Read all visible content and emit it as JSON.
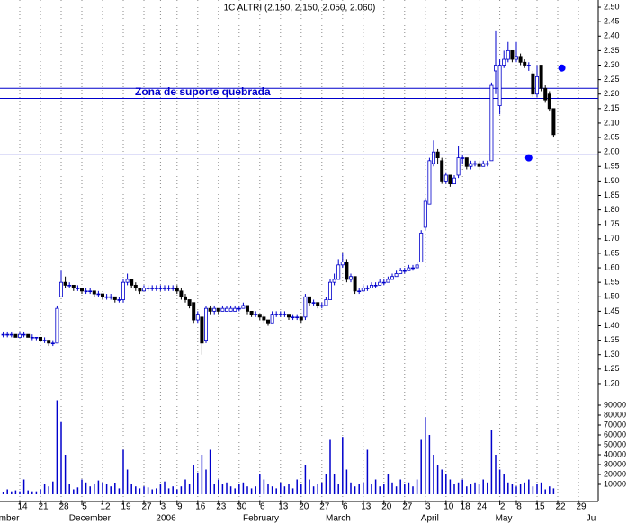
{
  "chart_data": {
    "type": "candlestick",
    "title": "1C ALTRI (2.150, 2.150, 2.050, 2.060)",
    "annotation": "Zona de suporte quebrada",
    "categories": [
      null,
      null,
      null,
      null,
      "14",
      null,
      null,
      null,
      null,
      "21",
      null,
      null,
      null,
      null,
      "28",
      null,
      null,
      null,
      null,
      "5",
      null,
      null,
      null,
      null,
      "12",
      null,
      null,
      null,
      null,
      "19",
      null,
      null,
      null,
      null,
      "27",
      null,
      null,
      null,
      "3",
      null,
      null,
      null,
      "9",
      null,
      null,
      null,
      null,
      "16",
      null,
      null,
      null,
      null,
      "23",
      null,
      null,
      null,
      null,
      "30",
      null,
      null,
      null,
      null,
      "6",
      null,
      null,
      null,
      null,
      "13",
      null,
      null,
      null,
      null,
      "20",
      null,
      null,
      null,
      null,
      "27",
      null,
      null,
      null,
      null,
      "6",
      null,
      null,
      null,
      null,
      "13",
      null,
      null,
      null,
      null,
      "20",
      null,
      null,
      null,
      null,
      "27",
      null,
      null,
      null,
      null,
      "3",
      null,
      null,
      null,
      null,
      "10",
      null,
      null,
      null,
      "18",
      null,
      null,
      null,
      "24",
      null,
      null,
      null,
      null,
      "2",
      null,
      null,
      null,
      "8",
      null,
      null,
      null,
      null,
      "15",
      null,
      null,
      null,
      null,
      "22",
      null,
      null,
      null,
      null,
      "29",
      null,
      null,
      null
    ],
    "month_labels": [
      "mber",
      null,
      null,
      null,
      null,
      null,
      null,
      null,
      null,
      null,
      null,
      null,
      null,
      null,
      null,
      null,
      null,
      "December",
      null,
      null,
      null,
      null,
      null,
      null,
      null,
      null,
      null,
      null,
      null,
      null,
      null,
      null,
      null,
      null,
      null,
      null,
      null,
      null,
      "2006",
      null,
      null,
      null,
      null,
      null,
      null,
      null,
      null,
      null,
      null,
      null,
      null,
      null,
      null,
      null,
      null,
      null,
      null,
      null,
      null,
      "February",
      null,
      null,
      null,
      null,
      null,
      null,
      null,
      null,
      null,
      null,
      null,
      null,
      null,
      null,
      null,
      null,
      null,
      null,
      null,
      "March",
      null,
      null,
      null,
      null,
      null,
      null,
      null,
      null,
      null,
      null,
      null,
      null,
      null,
      null,
      null,
      null,
      null,
      null,
      null,
      null,
      null,
      null,
      "April",
      null,
      null,
      null,
      null,
      null,
      null,
      null,
      null,
      null,
      null,
      null,
      null,
      null,
      null,
      null,
      null,
      null,
      "May",
      null,
      null,
      null,
      null,
      null,
      null,
      null,
      null,
      null,
      null,
      null,
      null,
      null,
      null,
      null,
      null,
      null,
      null,
      null,
      null,
      null,
      "Ju"
    ],
    "candles": [
      [
        1.37,
        1.38,
        1.36,
        1.37
      ],
      [
        1.37,
        1.38,
        1.36,
        1.37
      ],
      [
        1.37,
        1.38,
        1.36,
        1.37
      ],
      [
        1.37,
        1.37,
        1.36,
        1.36
      ],
      [
        1.36,
        1.38,
        1.36,
        1.37
      ],
      [
        1.37,
        1.38,
        1.36,
        1.37
      ],
      [
        1.37,
        1.37,
        1.36,
        1.36
      ],
      [
        1.36,
        1.37,
        1.35,
        1.36
      ],
      [
        1.36,
        1.36,
        1.35,
        1.36
      ],
      [
        1.36,
        1.36,
        1.35,
        1.35
      ],
      [
        1.35,
        1.36,
        1.34,
        1.35
      ],
      [
        1.35,
        1.35,
        1.33,
        1.34
      ],
      [
        1.34,
        1.35,
        1.33,
        1.34
      ],
      [
        1.34,
        1.47,
        1.34,
        1.46
      ],
      [
        1.5,
        1.59,
        1.5,
        1.55
      ],
      [
        1.55,
        1.57,
        1.53,
        1.54
      ],
      [
        1.54,
        1.55,
        1.53,
        1.54
      ],
      [
        1.54,
        1.54,
        1.52,
        1.53
      ],
      [
        1.53,
        1.54,
        1.52,
        1.53
      ],
      [
        1.53,
        1.53,
        1.51,
        1.52
      ],
      [
        1.52,
        1.53,
        1.51,
        1.52
      ],
      [
        1.52,
        1.53,
        1.51,
        1.52
      ],
      [
        1.52,
        1.52,
        1.5,
        1.51
      ],
      [
        1.51,
        1.52,
        1.5,
        1.51
      ],
      [
        1.51,
        1.51,
        1.49,
        1.5
      ],
      [
        1.5,
        1.51,
        1.49,
        1.5
      ],
      [
        1.5,
        1.51,
        1.49,
        1.5
      ],
      [
        1.5,
        1.5,
        1.48,
        1.49
      ],
      [
        1.49,
        1.5,
        1.48,
        1.49
      ],
      [
        1.49,
        1.56,
        1.48,
        1.55
      ],
      [
        1.55,
        1.58,
        1.54,
        1.56
      ],
      [
        1.56,
        1.56,
        1.53,
        1.54
      ],
      [
        1.54,
        1.55,
        1.52,
        1.53
      ],
      [
        1.53,
        1.53,
        1.51,
        1.52
      ],
      [
        1.52,
        1.54,
        1.52,
        1.53
      ],
      [
        1.53,
        1.54,
        1.52,
        1.53
      ],
      [
        1.53,
        1.54,
        1.52,
        1.53
      ],
      [
        1.53,
        1.54,
        1.52,
        1.53
      ],
      [
        1.53,
        1.54,
        1.52,
        1.53
      ],
      [
        1.53,
        1.54,
        1.52,
        1.53
      ],
      [
        1.53,
        1.54,
        1.52,
        1.53
      ],
      [
        1.53,
        1.54,
        1.52,
        1.53
      ],
      [
        1.53,
        1.54,
        1.51,
        1.52
      ],
      [
        1.52,
        1.53,
        1.49,
        1.5
      ],
      [
        1.5,
        1.51,
        1.48,
        1.49
      ],
      [
        1.49,
        1.49,
        1.46,
        1.47
      ],
      [
        1.48,
        1.48,
        1.41,
        1.42
      ],
      [
        1.42,
        1.45,
        1.41,
        1.44
      ],
      [
        1.43,
        1.43,
        1.3,
        1.34
      ],
      [
        1.35,
        1.47,
        1.34,
        1.46
      ],
      [
        1.46,
        1.47,
        1.44,
        1.45
      ],
      [
        1.45,
        1.47,
        1.44,
        1.46
      ],
      [
        1.46,
        1.46,
        1.44,
        1.45
      ],
      [
        1.45,
        1.47,
        1.45,
        1.46
      ],
      [
        1.45,
        1.47,
        1.45,
        1.46
      ],
      [
        1.45,
        1.47,
        1.45,
        1.46
      ],
      [
        1.45,
        1.47,
        1.45,
        1.46
      ],
      [
        1.46,
        1.47,
        1.45,
        1.46
      ],
      [
        1.46,
        1.48,
        1.46,
        1.47
      ],
      [
        1.47,
        1.47,
        1.44,
        1.45
      ],
      [
        1.45,
        1.45,
        1.43,
        1.44
      ],
      [
        1.44,
        1.45,
        1.43,
        1.44
      ],
      [
        1.44,
        1.44,
        1.42,
        1.43
      ],
      [
        1.43,
        1.44,
        1.41,
        1.42
      ],
      [
        1.42,
        1.42,
        1.4,
        1.41
      ],
      [
        1.41,
        1.45,
        1.41,
        1.44
      ],
      [
        1.44,
        1.45,
        1.43,
        1.44
      ],
      [
        1.44,
        1.45,
        1.43,
        1.44
      ],
      [
        1.44,
        1.45,
        1.43,
        1.44
      ],
      [
        1.44,
        1.44,
        1.42,
        1.43
      ],
      [
        1.43,
        1.44,
        1.42,
        1.43
      ],
      [
        1.43,
        1.44,
        1.42,
        1.43
      ],
      [
        1.43,
        1.43,
        1.41,
        1.42
      ],
      [
        1.43,
        1.51,
        1.42,
        1.5
      ],
      [
        1.5,
        1.5,
        1.47,
        1.48
      ],
      [
        1.48,
        1.49,
        1.47,
        1.48
      ],
      [
        1.48,
        1.48,
        1.46,
        1.47
      ],
      [
        1.47,
        1.48,
        1.46,
        1.47
      ],
      [
        1.47,
        1.5,
        1.47,
        1.49
      ],
      [
        1.49,
        1.56,
        1.49,
        1.55
      ],
      [
        1.55,
        1.58,
        1.54,
        1.56
      ],
      [
        1.56,
        1.63,
        1.56,
        1.61
      ],
      [
        1.61,
        1.65,
        1.6,
        1.62
      ],
      [
        1.62,
        1.63,
        1.55,
        1.56
      ],
      [
        1.56,
        1.58,
        1.55,
        1.57
      ],
      [
        1.57,
        1.57,
        1.51,
        1.52
      ],
      [
        1.52,
        1.53,
        1.51,
        1.52
      ],
      [
        1.52,
        1.54,
        1.52,
        1.53
      ],
      [
        1.53,
        1.54,
        1.52,
        1.53
      ],
      [
        1.53,
        1.55,
        1.53,
        1.54
      ],
      [
        1.54,
        1.55,
        1.53,
        1.54
      ],
      [
        1.54,
        1.56,
        1.54,
        1.55
      ],
      [
        1.55,
        1.56,
        1.54,
        1.55
      ],
      [
        1.55,
        1.57,
        1.55,
        1.56
      ],
      [
        1.56,
        1.58,
        1.56,
        1.57
      ],
      [
        1.57,
        1.59,
        1.57,
        1.58
      ],
      [
        1.58,
        1.6,
        1.58,
        1.59
      ],
      [
        1.59,
        1.6,
        1.58,
        1.59
      ],
      [
        1.59,
        1.61,
        1.59,
        1.6
      ],
      [
        1.6,
        1.61,
        1.59,
        1.6
      ],
      [
        1.6,
        1.62,
        1.6,
        1.61
      ],
      [
        1.62,
        1.73,
        1.62,
        1.72
      ],
      [
        1.74,
        1.84,
        1.73,
        1.83
      ],
      [
        1.82,
        1.98,
        1.82,
        1.97
      ],
      [
        1.96,
        2.04,
        1.95,
        2.0
      ],
      [
        2.0,
        2.01,
        1.96,
        1.98
      ],
      [
        1.97,
        1.98,
        1.89,
        1.9
      ],
      [
        1.9,
        1.93,
        1.89,
        1.92
      ],
      [
        1.92,
        1.92,
        1.88,
        1.89
      ],
      [
        1.89,
        1.92,
        1.89,
        1.91
      ],
      [
        1.92,
        2.02,
        1.91,
        1.98
      ],
      [
        1.98,
        1.99,
        1.96,
        1.98
      ],
      [
        1.98,
        1.98,
        1.94,
        1.95
      ],
      [
        1.95,
        1.97,
        1.94,
        1.96
      ],
      [
        1.96,
        1.97,
        1.95,
        1.96
      ],
      [
        1.96,
        1.97,
        1.94,
        1.95
      ],
      [
        1.95,
        1.97,
        1.95,
        1.96
      ],
      [
        1.96,
        1.97,
        1.95,
        1.96
      ],
      [
        1.97,
        2.24,
        1.97,
        2.23
      ],
      [
        2.28,
        2.42,
        2.2,
        2.3
      ],
      [
        2.16,
        2.32,
        2.13,
        2.3
      ],
      [
        2.3,
        2.35,
        2.29,
        2.32
      ],
      [
        2.32,
        2.38,
        2.31,
        2.35
      ],
      [
        2.35,
        2.35,
        2.31,
        2.32
      ],
      [
        2.32,
        2.38,
        2.31,
        2.33
      ],
      [
        2.33,
        2.34,
        2.3,
        2.31
      ],
      [
        2.31,
        2.32,
        2.29,
        2.3
      ],
      [
        2.3,
        2.31,
        2.28,
        2.3
      ],
      [
        2.27,
        2.28,
        2.19,
        2.2
      ],
      [
        2.2,
        2.3,
        2.19,
        2.26
      ],
      [
        2.3,
        2.3,
        2.21,
        2.22
      ],
      [
        2.22,
        2.23,
        2.17,
        2.18
      ],
      [
        2.2,
        2.21,
        2.14,
        2.15
      ],
      [
        2.15,
        2.15,
        2.05,
        2.06
      ],
      null,
      null,
      null,
      null,
      null,
      null,
      null,
      null,
      null
    ],
    "up_color": "#0000cc",
    "down_color": "#000000",
    "ylim": [
      1.175,
      2.525
    ],
    "yticks": [
      {
        "value": 1.2,
        "label": "1.20"
      },
      1.25,
      {
        "value": 1.3,
        "label": "1.30"
      },
      1.35,
      {
        "value": 1.4,
        "label": "1.40"
      },
      1.45,
      {
        "value": 1.5,
        "label": "1.50"
      },
      1.55,
      {
        "value": 1.6,
        "label": "1.60"
      },
      1.65,
      {
        "value": 1.7,
        "label": "1.70"
      },
      1.75,
      {
        "value": 1.8,
        "label": "1.80"
      },
      1.85,
      {
        "value": 1.9,
        "label": "1.90"
      },
      1.95,
      {
        "value": 2,
        "label": "2.00"
      },
      2.05,
      {
        "value": 2.1,
        "label": "2.10"
      },
      2.15,
      {
        "value": 2.2,
        "label": "2.20"
      },
      2.25,
      {
        "value": 2.3,
        "label": "2.30"
      },
      2.35,
      {
        "value": 2.4,
        "label": "2.40"
      },
      2.45,
      {
        "value": 2.5,
        "label": "2.50"
      }
    ],
    "lines": [
      {
        "value": 2.22,
        "color": "#0000cc"
      },
      {
        "value": 2.185,
        "color": "#0000cc"
      },
      {
        "value": 1.99,
        "color": "#0000cc"
      }
    ],
    "markers": [
      {
        "index": 135,
        "value": 2.29,
        "color": "#0000ff"
      },
      {
        "index": 127,
        "value": 1.98,
        "color": "#0000ff"
      }
    ],
    "volume": {
      "color": "#0000cc",
      "ylim": [
        0,
        100000
      ],
      "yticks": [
        10000,
        20000,
        30000,
        40000,
        50000,
        60000,
        70000,
        80000,
        90000
      ],
      "values": [
        2000,
        5000,
        3000,
        4000,
        3000,
        15000,
        4000,
        3000,
        3000,
        5000,
        10000,
        8000,
        13000,
        95000,
        73000,
        40000,
        10000,
        5000,
        7000,
        15000,
        12000,
        8000,
        10000,
        14000,
        12000,
        10000,
        8000,
        11000,
        6000,
        45000,
        25000,
        10000,
        8000,
        6000,
        8000,
        7000,
        5000,
        6000,
        10000,
        13000,
        6000,
        8000,
        5000,
        8000,
        15000,
        10000,
        30000,
        22000,
        40000,
        25000,
        45000,
        10000,
        15000,
        10000,
        12000,
        8000,
        6000,
        10000,
        12000,
        8000,
        6000,
        8000,
        20000,
        15000,
        10000,
        8000,
        6000,
        12000,
        8000,
        10000,
        6000,
        15000,
        10000,
        30000,
        15000,
        8000,
        10000,
        12000,
        20000,
        55000,
        20000,
        10000,
        58000,
        25000,
        12000,
        8000,
        10000,
        12000,
        45000,
        10000,
        15000,
        8000,
        10000,
        20000,
        12000,
        8000,
        15000,
        10000,
        12000,
        8000,
        15000,
        55000,
        78000,
        60000,
        40000,
        30000,
        25000,
        20000,
        15000,
        10000,
        12000,
        15000,
        8000,
        10000,
        12000,
        10000,
        15000,
        12000,
        65000,
        40000,
        25000,
        20000,
        12000,
        10000,
        8000,
        10000,
        12000,
        15000,
        8000,
        10000,
        12000,
        5000,
        8000,
        6000,
        null,
        null,
        null,
        null,
        null,
        null,
        null,
        null,
        null
      ]
    },
    "grid": true
  }
}
